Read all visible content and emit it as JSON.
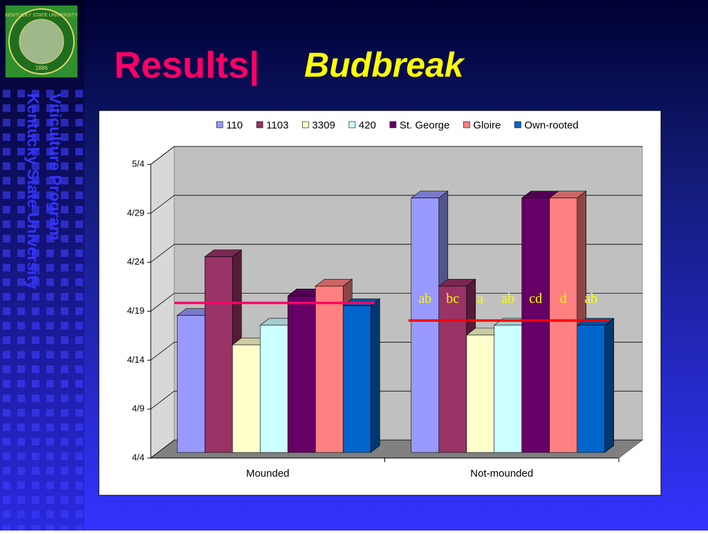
{
  "slide": {
    "title_main": "Results|",
    "title_sub": "Budbreak",
    "side_line1": "Viticulture Program",
    "side_line2": "Kentucky State University",
    "seal_text": "KENTUCKY STATE UNIVERSITY",
    "seal_year": "1886"
  },
  "chart_data": {
    "type": "bar3d",
    "categories": [
      "Mounded",
      "Not-mounded"
    ],
    "series": [
      {
        "name": "110",
        "color": "#9999ff",
        "values": [
          108,
          120
        ]
      },
      {
        "name": "1103",
        "color": "#993366",
        "values": [
          114,
          111
        ]
      },
      {
        "name": "3309",
        "color": "#ffffcc",
        "values": [
          105,
          106
        ]
      },
      {
        "name": "420",
        "color": "#ccffff",
        "values": [
          107,
          107
        ]
      },
      {
        "name": "St. George",
        "color": "#660066",
        "values": [
          110,
          120
        ]
      },
      {
        "name": "Gloire",
        "color": "#ff8080",
        "values": [
          111,
          120
        ]
      },
      {
        "name": "Own-rooted",
        "color": "#0066cc",
        "values": [
          109,
          107
        ]
      }
    ],
    "ylim": [
      94,
      124
    ],
    "yticks": [
      {
        "value": 94,
        "label": "4/4"
      },
      {
        "value": 99,
        "label": "4/9"
      },
      {
        "value": 104,
        "label": "4/14"
      },
      {
        "value": 109,
        "label": "4/19"
      },
      {
        "value": 114,
        "label": "4/24"
      },
      {
        "value": 119,
        "label": "4/29"
      },
      {
        "value": 124,
        "label": "5/4"
      }
    ],
    "grid": true,
    "legend": "top",
    "reference_lines": [
      {
        "category": 0,
        "value": 109,
        "color": "#ff0066"
      },
      {
        "category": 1,
        "value": 107.2,
        "color": "#ff0000"
      }
    ],
    "annotations": {
      "category": 1,
      "color": "#ffff00",
      "labels": [
        "ab",
        "bc",
        "a",
        "ab",
        "cd",
        "d",
        "ab"
      ]
    }
  }
}
